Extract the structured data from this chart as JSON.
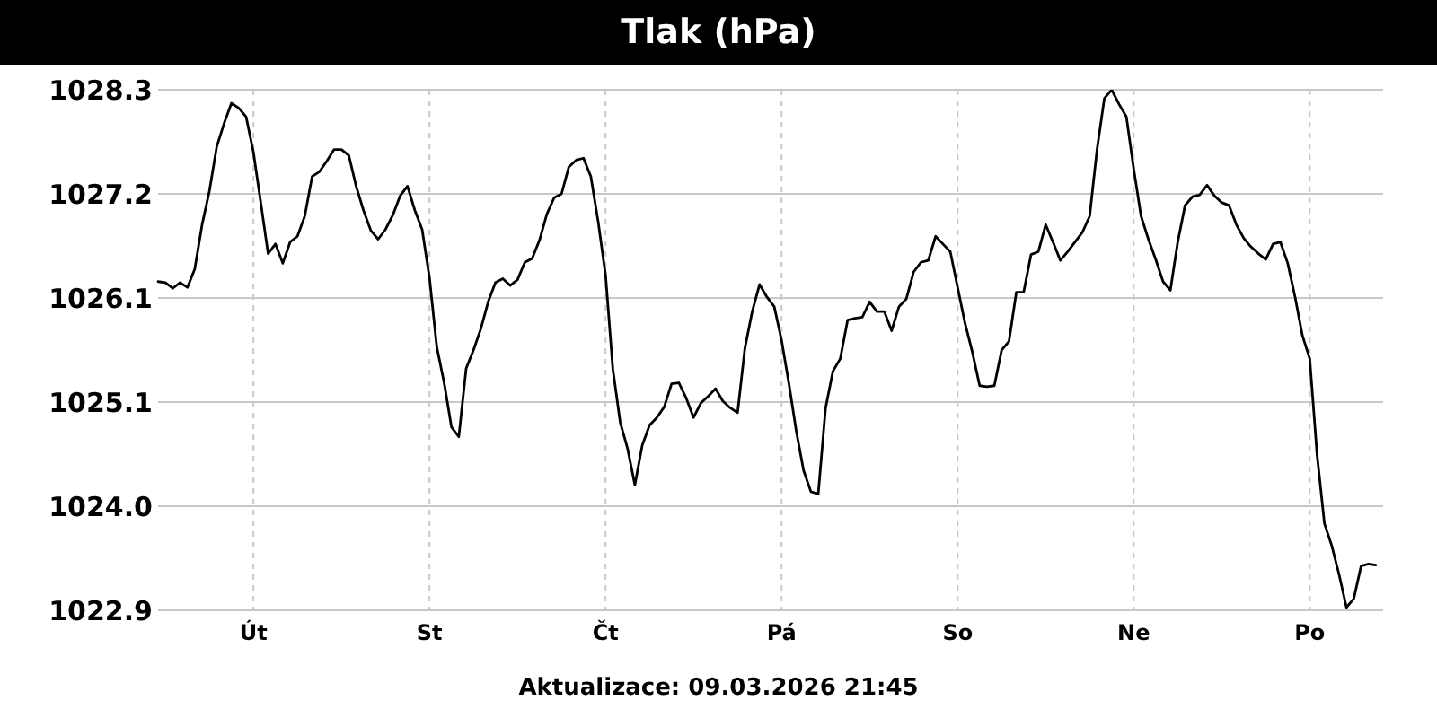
{
  "chart_data": {
    "type": "line",
    "title": "Tlak (hPa)",
    "annotations": [
      "Aktualizace: 09.03.2026 21:45"
    ],
    "color": "#000000",
    "grid": true,
    "categories": [
      null,
      null,
      null,
      null,
      null,
      null,
      null,
      null,
      null,
      null,
      null,
      null,
      null,
      "Út",
      null,
      null,
      null,
      null,
      null,
      null,
      null,
      null,
      null,
      null,
      null,
      null,
      null,
      null,
      null,
      null,
      null,
      null,
      null,
      null,
      null,
      null,
      null,
      "St",
      null,
      null,
      null,
      null,
      null,
      null,
      null,
      null,
      null,
      null,
      null,
      null,
      null,
      null,
      null,
      null,
      null,
      null,
      null,
      null,
      null,
      null,
      null,
      "Čt",
      null,
      null,
      null,
      null,
      null,
      null,
      null,
      null,
      null,
      null,
      null,
      null,
      null,
      null,
      null,
      null,
      null,
      null,
      null,
      null,
      null,
      null,
      null,
      "Pá",
      null,
      null,
      null,
      null,
      null,
      null,
      null,
      null,
      null,
      null,
      null,
      null,
      null,
      null,
      null,
      null,
      null,
      null,
      null,
      null,
      null,
      null,
      null,
      "So",
      null,
      null,
      null,
      null,
      null,
      null,
      null,
      null,
      null,
      null,
      null,
      null,
      null,
      null,
      null,
      null,
      null,
      null,
      null,
      null,
      null,
      null,
      null,
      "Ne",
      null,
      null,
      null,
      null,
      null,
      null,
      null,
      null,
      null,
      null,
      null,
      null,
      null,
      null,
      null,
      null,
      null,
      null,
      null,
      null,
      null,
      null,
      null,
      "Po",
      null,
      null,
      null,
      null,
      null,
      null,
      null,
      null,
      null,
      null
    ],
    "ylim": [
      1022.9,
      1028.3
    ],
    "yticks": [
      1022.9,
      {
        "value": 1023.98,
        "label": "1024.0"
      },
      {
        "value": 1025.06,
        "label": "1025.1"
      },
      {
        "value": 1026.14,
        "label": "1026.1"
      },
      {
        "value": 1027.22,
        "label": "1027.2"
      },
      1028.3
    ],
    "values": [
      1026.31,
      1026.3,
      1026.24,
      1026.3,
      1026.25,
      1026.44,
      1026.9,
      1027.25,
      1027.71,
      1027.95,
      1028.16,
      1028.11,
      1028.02,
      1027.65,
      1027.13,
      1026.6,
      1026.7,
      1026.5,
      1026.72,
      1026.78,
      1026.99,
      1027.4,
      1027.45,
      1027.56,
      1027.68,
      1027.68,
      1027.62,
      1027.3,
      1027.05,
      1026.84,
      1026.75,
      1026.85,
      1027.0,
      1027.2,
      1027.3,
      1027.05,
      1026.85,
      1026.35,
      1025.63,
      1025.26,
      1024.8,
      1024.7,
      1025.41,
      1025.6,
      1025.82,
      1026.1,
      1026.3,
      1026.34,
      1026.27,
      1026.33,
      1026.51,
      1026.55,
      1026.74,
      1027.01,
      1027.18,
      1027.22,
      1027.5,
      1027.57,
      1027.59,
      1027.4,
      1026.93,
      1026.38,
      1025.4,
      1024.85,
      1024.58,
      1024.2,
      1024.61,
      1024.82,
      1024.9,
      1025.01,
      1025.25,
      1025.26,
      1025.1,
      1024.9,
      1025.05,
      1025.12,
      1025.2,
      1025.07,
      1025.0,
      1024.95,
      1025.62,
      1026.0,
      1026.28,
      1026.15,
      1026.05,
      1025.7,
      1025.25,
      1024.76,
      1024.35,
      1024.13,
      1024.11,
      1025.0,
      1025.38,
      1025.51,
      1025.91,
      1025.93,
      1025.94,
      1026.1,
      1026.0,
      1026.0,
      1025.8,
      1026.05,
      1026.13,
      1026.41,
      1026.51,
      1026.53,
      1026.78,
      1026.7,
      1026.62,
      1026.25,
      1025.88,
      1025.58,
      1025.23,
      1025.22,
      1025.23,
      1025.6,
      1025.69,
      1026.2,
      1026.2,
      1026.59,
      1026.62,
      1026.9,
      1026.72,
      1026.53,
      1026.62,
      1026.72,
      1026.82,
      1026.99,
      1027.68,
      1028.21,
      1028.3,
      1028.15,
      1028.02,
      1027.48,
      1026.99,
      1026.75,
      1026.54,
      1026.31,
      1026.22,
      1026.72,
      1027.1,
      1027.19,
      1027.21,
      1027.31,
      1027.2,
      1027.13,
      1027.1,
      1026.9,
      1026.76,
      1026.67,
      1026.6,
      1026.54,
      1026.7,
      1026.72,
      1026.5,
      1026.15,
      1025.75,
      1025.51,
      1024.51,
      1023.8,
      1023.57,
      1023.27,
      1022.93,
      1023.02,
      1023.36,
      1023.38,
      1023.37,
      null
    ]
  }
}
